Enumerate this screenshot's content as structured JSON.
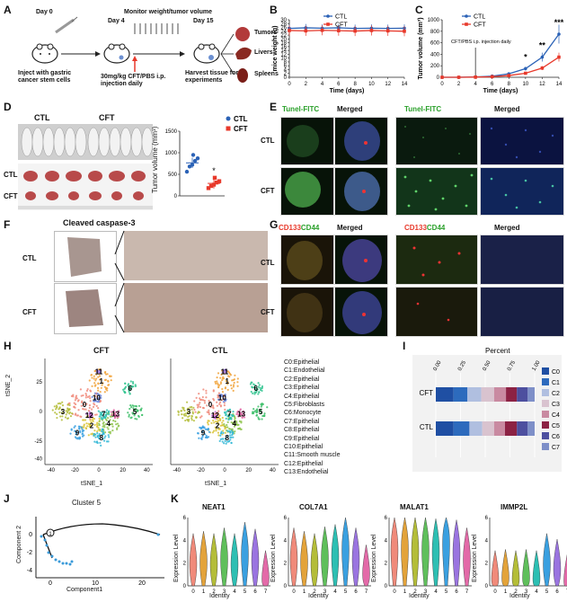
{
  "panels": {
    "A": "A",
    "B": "B",
    "C": "C",
    "D": "D",
    "E": "E",
    "F": "F",
    "G": "G",
    "H": "H",
    "I": "I",
    "J": "J",
    "K": "K"
  },
  "panelA": {
    "day0": "Day 0",
    "day4": "Day 4",
    "day15": "Day 15",
    "monitor": "Monitor weight/tumor volume",
    "inject": "Inject with gastric cancer stem cells",
    "treat": "30mg/kg CFT/PBS i.p. injection daily",
    "harvest": "Harvest tissue for experiments",
    "tumors": "Tumors",
    "livers": "Livers",
    "spleens": "Spleens"
  },
  "panelD": {
    "ctl": "CTL",
    "cft": "CFT",
    "ylabel": "Tumor volume (mm³)",
    "star": "*",
    "legend_ctl": "CTL",
    "legend_cft": "CFT"
  },
  "panelE": {
    "tunel": "Tunel-FITC",
    "merged": "Merged",
    "tunel2": "Tunel-FITC",
    "merged2": "Merged",
    "ctl": "CTL",
    "cft": "CFT"
  },
  "panelF": {
    "title": "Cleaved caspase-3",
    "ctl": "CTL",
    "cft": "CFT"
  },
  "panelG": {
    "cd133": "CD133",
    "cd44": "CD44",
    "merged": "Merged",
    "merged2": "Merged",
    "ctl": "CTL",
    "cft": "CFT"
  },
  "panelH": {
    "cft": "CFT",
    "ctl": "CTL",
    "xlabel": "tSNE_1",
    "ylabel": "tSNE_2",
    "clusters": [
      "C0:Epithelial",
      "C1:Endothelial",
      "C2:Epithelial",
      "C3:Epithelial",
      "C4:Epithelial",
      "C5:Fibroblasts",
      "C6:Monocyte",
      "C7:Epithelial",
      "C8:Epithelial",
      "C9:Epithelial",
      "C10:Epithelial",
      "C11:Smooth muscle",
      "C12:Epithelial",
      "C13:Endothelial"
    ]
  },
  "panelI": {
    "title": "Percent",
    "cft": "CFT",
    "ctl": "CTL"
  },
  "panelJ": {
    "title": "Cluster 5",
    "xlabel": "Component1",
    "ylabel": "Component 2"
  },
  "panelK": {
    "genes": [
      "NEAT1",
      "COL7A1",
      "MALAT1",
      "IMMP2L"
    ],
    "ylabel": "Expression Level",
    "xlabel": "Identity"
  },
  "colors": {
    "ctl": "#2b62b6",
    "cft": "#e8392b"
  },
  "chart_data": [
    {
      "type": "line",
      "id": "B",
      "xlabel": "Time (days)",
      "ylabel": "mice weight (g)",
      "ylim": [
        0,
        30
      ],
      "xlim": [
        0,
        14
      ],
      "yticks": [
        0,
        2,
        4,
        6,
        8,
        10,
        12,
        14,
        16,
        18,
        20,
        22,
        24,
        26,
        28,
        30
      ],
      "xticks": [
        0,
        2,
        4,
        6,
        8,
        10,
        12,
        14
      ],
      "x": [
        0,
        2,
        4,
        6,
        8,
        10,
        12,
        14
      ],
      "series": [
        {
          "name": "CTL",
          "values": [
            25.5,
            25.8,
            25.6,
            25.8,
            25.5,
            25.6,
            25.5,
            25.6
          ]
        },
        {
          "name": "CFT",
          "values": [
            24.4,
            24.2,
            24.5,
            24.3,
            24.1,
            24.4,
            24.2,
            24.0
          ]
        }
      ]
    },
    {
      "type": "line",
      "id": "C",
      "xlabel": "Time (days)",
      "ylabel": "Tumor volume (mm³)",
      "ylim": [
        0,
        1000
      ],
      "xlim": [
        0,
        14
      ],
      "yticks": [
        0,
        200,
        400,
        600,
        800,
        1000
      ],
      "xticks": [
        0,
        2,
        4,
        6,
        8,
        10,
        12,
        14
      ],
      "x": [
        0,
        2,
        4,
        6,
        8,
        10,
        12,
        14
      ],
      "annotation": "CFT/PBS i.p. injection daily",
      "sig": [
        {
          "x": 10,
          "label": "*"
        },
        {
          "x": 12,
          "label": "**"
        },
        {
          "x": 14,
          "label": "***"
        }
      ],
      "series": [
        {
          "name": "CTL",
          "values": [
            0,
            0,
            5,
            20,
            60,
            150,
            350,
            750
          ]
        },
        {
          "name": "CFT",
          "values": [
            0,
            0,
            3,
            10,
            30,
            70,
            160,
            350
          ]
        }
      ]
    },
    {
      "type": "scatter",
      "id": "D",
      "ylabel": "Tumor volume (mm³)",
      "ylim": [
        0,
        1500
      ],
      "yticks": [
        0,
        500,
        1000,
        1500
      ],
      "categories": [
        "CTL",
        "CFT"
      ],
      "series": [
        {
          "name": "CTL",
          "values": [
            560,
            680,
            720,
            810,
            870,
            950
          ]
        },
        {
          "name": "CFT",
          "values": [
            180,
            230,
            260,
            310,
            340,
            420
          ]
        }
      ]
    },
    {
      "type": "bar",
      "id": "I",
      "xlabel": "Percent",
      "xticks": [
        "0.00",
        "0.25",
        "0.50",
        "0.75",
        "1.00"
      ],
      "categories": [
        "CFT",
        "CTL"
      ],
      "series": [
        {
          "name": "C0",
          "values": [
            0.18,
            0.18
          ]
        },
        {
          "name": "C1",
          "values": [
            0.14,
            0.16
          ]
        },
        {
          "name": "C2",
          "values": [
            0.14,
            0.13
          ]
        },
        {
          "name": "C3",
          "values": [
            0.13,
            0.12
          ]
        },
        {
          "name": "C4",
          "values": [
            0.12,
            0.11
          ]
        },
        {
          "name": "C5",
          "values": [
            0.11,
            0.12
          ]
        },
        {
          "name": "C6",
          "values": [
            0.11,
            0.11
          ]
        },
        {
          "name": "C7",
          "values": [
            0.07,
            0.07
          ]
        }
      ]
    }
  ]
}
